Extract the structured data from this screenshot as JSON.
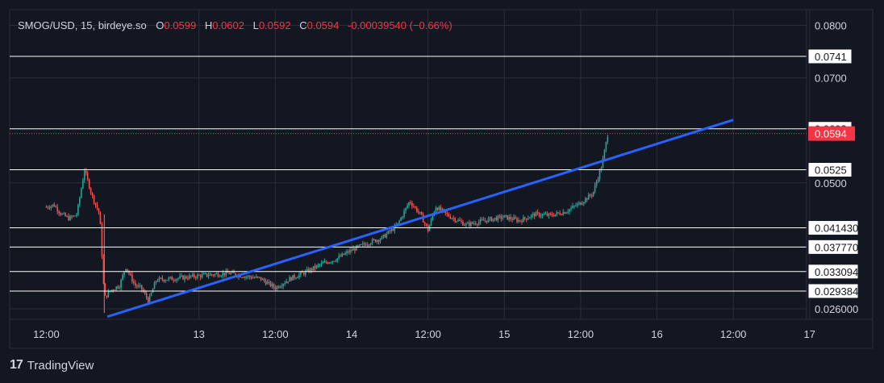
{
  "header": {
    "symbol": "SMOG/USD, 15, birdeye.so",
    "open_label": "O",
    "open": "0.0599",
    "high_label": "H",
    "high": "0.0602",
    "low_label": "L",
    "low": "0.0592",
    "close_label": "C",
    "close": "0.0594",
    "change": "-0.00039540 (−0.66%)"
  },
  "branding": {
    "logo_icon": "tradingview-logo-icon",
    "name": "TradingView"
  },
  "colors": {
    "background": "#131722",
    "panel": "#1e222d",
    "grid": "#2a2e39",
    "up": "#26a69a",
    "down": "#ef5350",
    "trendline": "#2962ff",
    "hline": "#ffffff",
    "price_label": "#f23645",
    "text": "#d1d4dc"
  },
  "chart_data": {
    "type": "candlestick",
    "title": "SMOG/USD, 15, birdeye.so",
    "xlabel": "",
    "ylabel": "",
    "x_ticks": [
      "12:00",
      "13",
      "12:00",
      "14",
      "12:00",
      "15",
      "12:00",
      "16",
      "12:00",
      "17"
    ],
    "y_ticks": [
      "0.0800",
      "0.0700",
      "0.0500",
      "0.026000"
    ],
    "ylim": [
      0.024,
      0.083
    ],
    "horizontal_levels": [
      "0.0741",
      "0.0603",
      "0.0525",
      "0.041430",
      "0.037770",
      "0.033094",
      "0.029384"
    ],
    "current_price": "0.0594",
    "trendline": {
      "start": {
        "day": 12.4,
        "price": 0.0245
      },
      "end": {
        "day": 16.5,
        "price": 0.062
      }
    },
    "price_path": [
      [
        12.0,
        0.0454
      ],
      [
        12.05,
        0.0458
      ],
      [
        12.1,
        0.044
      ],
      [
        12.15,
        0.0432
      ],
      [
        12.2,
        0.044
      ],
      [
        12.25,
        0.0525
      ],
      [
        12.3,
        0.0475
      ],
      [
        12.35,
        0.044
      ],
      [
        12.38,
        0.028
      ],
      [
        12.42,
        0.0295
      ],
      [
        12.48,
        0.0305
      ],
      [
        12.52,
        0.034
      ],
      [
        12.58,
        0.0305
      ],
      [
        12.62,
        0.03
      ],
      [
        12.67,
        0.0275
      ],
      [
        12.72,
        0.0315
      ],
      [
        12.85,
        0.0318
      ],
      [
        13.0,
        0.0323
      ],
      [
        13.2,
        0.0328
      ],
      [
        13.3,
        0.0322
      ],
      [
        13.4,
        0.0318
      ],
      [
        13.5,
        0.03
      ],
      [
        13.6,
        0.0318
      ],
      [
        13.7,
        0.033
      ],
      [
        13.8,
        0.0345
      ],
      [
        13.9,
        0.0355
      ],
      [
        14.0,
        0.0372
      ],
      [
        14.1,
        0.0385
      ],
      [
        14.2,
        0.0395
      ],
      [
        14.3,
        0.042
      ],
      [
        14.38,
        0.0465
      ],
      [
        14.45,
        0.044
      ],
      [
        14.5,
        0.041
      ],
      [
        14.55,
        0.0455
      ],
      [
        14.63,
        0.0438
      ],
      [
        14.75,
        0.042
      ],
      [
        14.9,
        0.043
      ],
      [
        15.0,
        0.0435
      ],
      [
        15.1,
        0.0428
      ],
      [
        15.2,
        0.044
      ],
      [
        15.3,
        0.0438
      ],
      [
        15.4,
        0.0445
      ],
      [
        15.5,
        0.0462
      ],
      [
        15.58,
        0.048
      ],
      [
        15.64,
        0.0535
      ],
      [
        15.68,
        0.0596
      ]
    ]
  }
}
